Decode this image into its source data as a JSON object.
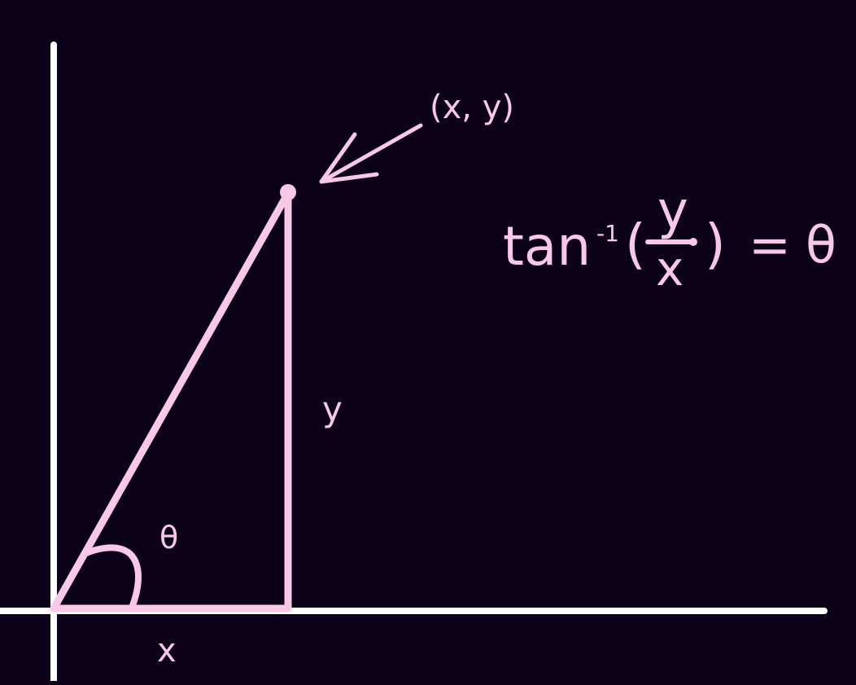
{
  "colors": {
    "background": "#0c031b",
    "axes": "#ffffff",
    "figure": "#f8c8e6"
  },
  "labels": {
    "point": "(x, y)",
    "x": "x",
    "y": "y",
    "theta": "θ"
  },
  "formula": {
    "function": "tan",
    "exponent": "-1",
    "open_paren": "(",
    "numerator": "y",
    "denominator": "x",
    "close_paren": ")",
    "equals": "=",
    "result": "θ"
  },
  "icons": {
    "pointer": "arrow-icon",
    "point": "point-marker-icon",
    "angle": "angle-arc-icon"
  }
}
